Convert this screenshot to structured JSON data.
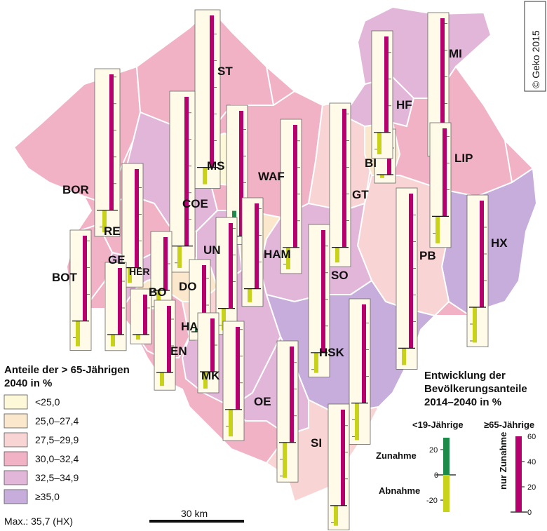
{
  "colors": {
    "c1": "#fdf8d8",
    "c2": "#fbe7cc",
    "c3": "#f8d4d4",
    "c4": "#f2b2c6",
    "c5": "#e2b6d8",
    "c6": "#c6addc",
    "young_increase": "#1e8a4a",
    "young_decrease": "#c8d21a",
    "old": "#b5006e",
    "box_fill": "#fffbe8"
  },
  "copyright": "© Geko 2015",
  "legend_left": {
    "title_line1": "Anteile der > 65-Jährigen",
    "title_line2": "2040 in %",
    "classes": [
      {
        "label": "<25,0",
        "color": "c1"
      },
      {
        "label": "25,0–27,4",
        "color": "c2"
      },
      {
        "label": "27,5–29,9",
        "color": "c3"
      },
      {
        "label": "30,0–32,4",
        "color": "c4"
      },
      {
        "label": "32,5–34,9",
        "color": "c5"
      },
      {
        "label": "≥35,0",
        "color": "c6"
      }
    ],
    "max_note": "Max.: 35,7 (HX)"
  },
  "legend_right": {
    "title_line1": "Entwicklung der",
    "title_line2": "Bevölkerungsanteile",
    "title_line3": "2014–2040 in %",
    "young_label": "<19-Jährige",
    "old_label": "≥65-Jährige",
    "increase_label": "Zunahme",
    "decrease_label": "Abnahme",
    "old_axis_label": "nur Zunahme",
    "young_ticks": [
      "20",
      "0",
      "-20"
    ],
    "old_ticks": [
      "60",
      "40",
      "20",
      "0"
    ]
  },
  "scale": {
    "label": "30 km"
  },
  "districts": [
    {
      "code": "ST",
      "young": -10,
      "old": 57
    },
    {
      "code": "BOR",
      "young": -13,
      "old": 51
    },
    {
      "code": "COE",
      "young": -13,
      "old": 56
    },
    {
      "code": "MS",
      "young": 15,
      "old": 47
    },
    {
      "code": "WAF",
      "young": -13,
      "old": 46
    },
    {
      "code": "GT",
      "young": -9,
      "old": 52
    },
    {
      "code": "BI",
      "young": -2,
      "old": 15
    },
    {
      "code": "MI",
      "young": -13,
      "old": 42
    },
    {
      "code": "HF",
      "young": -13,
      "old": 36
    },
    {
      "code": "LIP",
      "young": -16,
      "old": 33
    },
    {
      "code": "HX",
      "young": -21,
      "old": 40
    },
    {
      "code": "PB",
      "young": -10,
      "old": 58
    },
    {
      "code": "RE",
      "young": -9,
      "old": 37
    },
    {
      "code": "UN",
      "young": -13,
      "old": 32
    },
    {
      "code": "HAM",
      "young": -8,
      "old": 32
    },
    {
      "code": "SO",
      "young": -12,
      "old": 46
    },
    {
      "code": "BOT",
      "young": -15,
      "old": 32
    },
    {
      "code": "GE",
      "young": -7,
      "old": 25
    },
    {
      "code": "HER",
      "young": -7,
      "old": 20
    },
    {
      "code": "BO",
      "young": -3,
      "old": 15
    },
    {
      "code": "DO",
      "young": 2,
      "old": 25
    },
    {
      "code": "EN",
      "young": -8,
      "old": 25
    },
    {
      "code": "HA",
      "young": -10,
      "old": 20
    },
    {
      "code": "MK",
      "young": -16,
      "old": 31
    },
    {
      "code": "HSK",
      "young": -22,
      "old": 37
    },
    {
      "code": "OE",
      "young": -21,
      "old": 36
    },
    {
      "code": "SI",
      "young": -12,
      "old": 36
    }
  ]
}
